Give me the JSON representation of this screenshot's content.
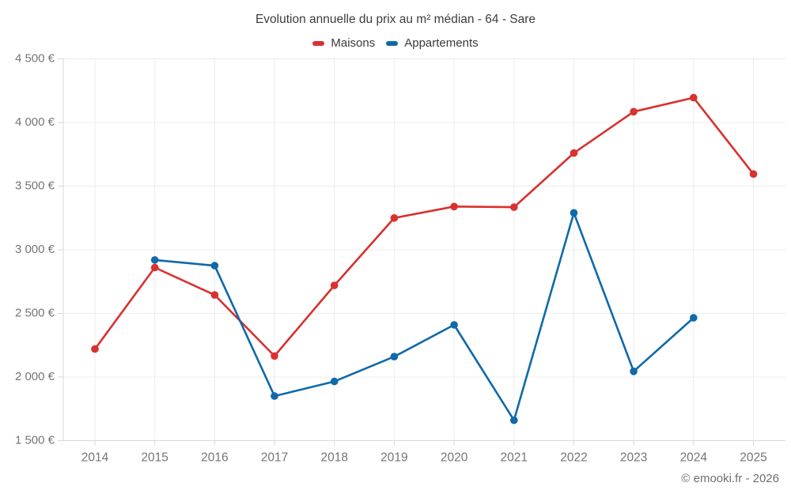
{
  "chart_data": {
    "type": "line",
    "title": "Evolution annuelle du prix au m² médian - 64 - Sare",
    "x": [
      "2014",
      "2015",
      "2016",
      "2017",
      "2018",
      "2019",
      "2020",
      "2021",
      "2022",
      "2023",
      "2024",
      "2025"
    ],
    "series": [
      {
        "name": "Maisons",
        "color": "#d8312f",
        "values": [
          2220,
          2860,
          2645,
          2165,
          2720,
          3250,
          3340,
          3335,
          3760,
          4085,
          4195,
          3595
        ]
      },
      {
        "name": "Appartements",
        "color": "#1069a9",
        "values": [
          null,
          2920,
          2875,
          1850,
          1965,
          2160,
          2410,
          1660,
          3290,
          2045,
          2465,
          null
        ]
      }
    ],
    "xlabel": "",
    "ylabel": "",
    "ylim": [
      1500,
      4500
    ],
    "ytick_step": 500,
    "ytick_labels": [
      "1 500 €",
      "2 000 €",
      "2 500 €",
      "3 000 €",
      "3 500 €",
      "4 000 €",
      "4 500 €"
    ],
    "grid": true,
    "legend_position": "top",
    "currency_suffix": " €"
  },
  "footer": {
    "copyright": "© emooki.fr - 2026"
  },
  "colors": {
    "grid": "#ececec",
    "axis": "#d9d9d9",
    "tick_text": "#757575",
    "title_text": "#3d3d3d",
    "background": "#ffffff"
  }
}
